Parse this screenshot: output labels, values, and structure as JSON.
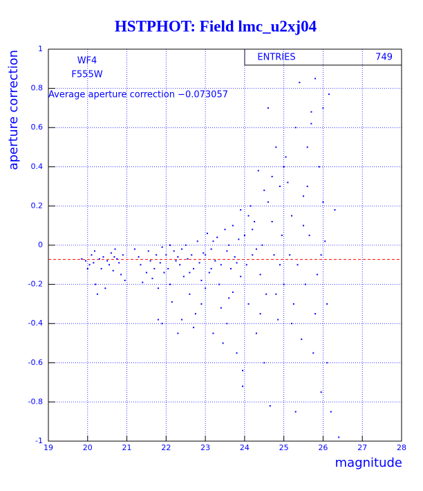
{
  "chart_data": {
    "type": "scatter",
    "title": "HSTPHOT: Field lmc_u2xj04",
    "x_label": "magnitude",
    "y_label": "aperture correction",
    "annotations": [
      "WF4",
      "F555W",
      "Average aperture correction −0.073057"
    ],
    "stats": {
      "label": "ENTRIES",
      "value": 749
    },
    "mean_line": -0.073057,
    "mean_line_color": "#ff0000",
    "color": "#0000ff",
    "grid": true,
    "xlim": [
      19,
      28
    ],
    "ylim": [
      -1,
      1
    ],
    "xticks": [
      19,
      20,
      21,
      22,
      23,
      24,
      25,
      26,
      27,
      28
    ],
    "yticks": [
      -1,
      -0.8,
      -0.6,
      -0.4,
      -0.2,
      0,
      0.2,
      0.4,
      0.6,
      0.8,
      1
    ],
    "x": [
      19.85,
      19.95,
      20.0,
      20.05,
      20.1,
      20.15,
      20.2,
      20.25,
      20.3,
      20.35,
      20.4,
      20.45,
      20.5,
      20.55,
      20.6,
      20.65,
      20.7,
      20.75,
      20.8,
      20.85,
      20.9,
      20.95,
      20.18,
      20.68,
      21.2,
      21.3,
      21.35,
      21.4,
      21.5,
      21.55,
      21.6,
      21.65,
      21.7,
      21.75,
      21.8,
      21.85,
      21.9,
      21.95,
      21.8,
      21.9,
      22.0,
      22.05,
      22.1,
      22.15,
      22.2,
      22.25,
      22.3,
      22.35,
      22.4,
      22.45,
      22.5,
      22.55,
      22.6,
      22.65,
      22.7,
      22.75,
      22.8,
      22.85,
      22.9,
      22.95,
      22.1,
      22.4,
      22.7,
      22.3,
      22.6,
      22.9,
      23.0,
      23.05,
      23.1,
      23.15,
      23.2,
      23.25,
      23.3,
      23.35,
      23.4,
      23.45,
      23.5,
      23.55,
      23.6,
      23.65,
      23.7,
      23.75,
      23.8,
      23.85,
      23.9,
      23.95,
      23.0,
      23.2,
      23.4,
      23.6,
      23.8,
      23.15,
      23.55,
      23.9,
      23.95,
      23.7,
      24.0,
      24.05,
      24.1,
      24.15,
      24.2,
      24.25,
      24.3,
      24.35,
      24.4,
      24.45,
      24.5,
      24.55,
      24.6,
      24.65,
      24.7,
      24.75,
      24.8,
      24.85,
      24.9,
      24.95,
      25.0,
      25.05,
      24.1,
      24.3,
      24.5,
      24.7,
      24.9,
      25.0,
      24.6,
      24.4,
      24.8,
      24.2,
      25.1,
      25.15,
      25.2,
      25.25,
      25.3,
      25.35,
      25.4,
      25.45,
      25.5,
      25.55,
      25.6,
      25.65,
      25.7,
      25.75,
      25.8,
      25.85,
      25.9,
      25.95,
      26.0,
      26.05,
      26.1,
      26.15,
      26.2,
      26.3,
      26.4,
      25.2,
      25.5,
      25.8,
      26.0,
      25.3,
      25.7,
      26.1,
      25.95,
      25.6
    ],
    "values": [
      -0.07,
      -0.08,
      -0.12,
      -0.1,
      -0.05,
      -0.09,
      -0.2,
      -0.25,
      -0.07,
      -0.12,
      -0.06,
      -0.22,
      -0.08,
      -0.1,
      -0.04,
      -0.13,
      -0.02,
      -0.07,
      -0.09,
      -0.15,
      -0.05,
      -0.18,
      -0.03,
      -0.06,
      -0.02,
      -0.06,
      -0.1,
      -0.19,
      -0.14,
      -0.03,
      -0.08,
      -0.17,
      -0.12,
      -0.05,
      -0.22,
      -0.09,
      -0.01,
      -0.14,
      -0.38,
      -0.4,
      -0.05,
      -0.12,
      -0.2,
      -0.29,
      -0.03,
      -0.08,
      -0.45,
      -0.1,
      -0.02,
      -0.16,
      0.0,
      -0.07,
      -0.25,
      -0.05,
      -0.12,
      -0.35,
      0.02,
      -0.09,
      -0.18,
      -0.04,
      0.0,
      -0.38,
      -0.42,
      -0.06,
      -0.14,
      -0.3,
      -0.05,
      0.06,
      -0.14,
      -0.02,
      -0.45,
      -0.08,
      0.04,
      -0.2,
      -0.1,
      -0.5,
      0.08,
      -0.03,
      -0.27,
      -0.12,
      0.1,
      -0.06,
      -0.55,
      0.03,
      -0.16,
      -0.72,
      -0.22,
      0.02,
      -0.32,
      0.0,
      -0.09,
      -0.12,
      -0.4,
      0.18,
      -0.64,
      -0.24,
      0.05,
      -0.1,
      -0.3,
      0.2,
      -0.05,
      0.12,
      -0.45,
      0.38,
      -0.15,
      0.0,
      0.28,
      -0.25,
      0.7,
      -0.82,
      0.12,
      -0.05,
      0.5,
      -0.38,
      0.3,
      0.05,
      -0.2,
      0.45,
      0.15,
      -0.02,
      -0.6,
      0.35,
      -0.1,
      0.4,
      0.22,
      -0.35,
      -0.25,
      0.08,
      0.32,
      -0.05,
      0.15,
      -0.3,
      0.6,
      -0.1,
      0.83,
      -0.48,
      0.25,
      -0.2,
      0.5,
      0.05,
      0.68,
      -0.55,
      0.85,
      -0.15,
      0.4,
      -0.75,
      0.7,
      0.02,
      -0.6,
      0.77,
      -0.85,
      0.18,
      -0.98,
      -0.4,
      0.1,
      -0.35,
      0.22,
      -0.85,
      0.62,
      -0.3,
      -0.05,
      0.3
    ]
  }
}
